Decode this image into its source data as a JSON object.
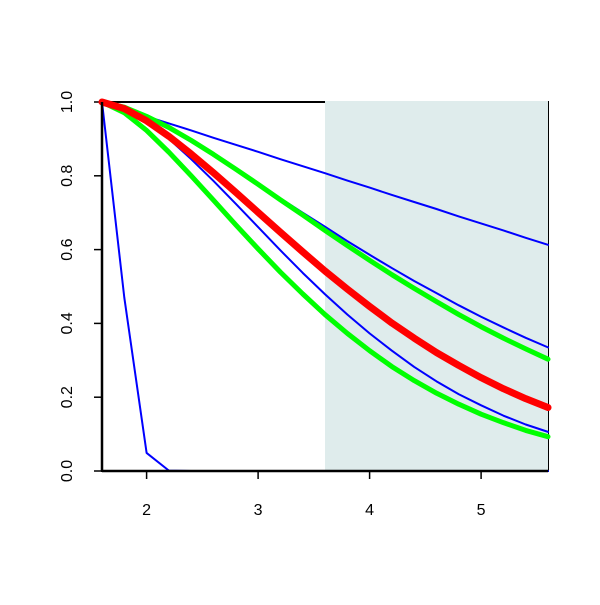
{
  "chart_data": {
    "type": "line",
    "x": [
      1.6,
      1.8,
      2.0,
      2.2,
      2.4,
      2.6,
      2.8,
      3.0,
      3.2,
      3.4,
      3.6,
      3.8,
      4.0,
      4.2,
      4.4,
      4.6,
      4.8,
      5.0,
      5.2,
      5.4,
      5.6
    ],
    "xlim": [
      1.6,
      5.6
    ],
    "xticks": [
      2,
      3,
      4,
      5
    ],
    "ylim": [
      0,
      1
    ],
    "yticks": [
      {
        "value": 0,
        "label": "0.0"
      },
      {
        "value": 0.2,
        "label": "0.2"
      },
      {
        "value": 0.4,
        "label": "0.4"
      },
      {
        "value": 0.6,
        "label": "0.6"
      },
      {
        "value": 0.8,
        "label": "0.8"
      },
      {
        "value": 1,
        "label": "1.0"
      }
    ],
    "highlight_x": [
      3.6,
      5.6
    ],
    "highlight_color": "#dfecec",
    "series": [
      {
        "color": "#0000ff",
        "width": 2,
        "values": [
          1.0,
          0.981,
          0.961,
          0.942,
          0.923,
          0.903,
          0.884,
          0.865,
          0.845,
          0.826,
          0.807,
          0.787,
          0.768,
          0.748,
          0.729,
          0.71,
          0.69,
          0.671,
          0.652,
          0.632,
          0.613
        ]
      },
      {
        "color": "#0000ff",
        "width": 2,
        "values": [
          1.0,
          0.984,
          0.958,
          0.927,
          0.892,
          0.856,
          0.817,
          0.779,
          0.739,
          0.7,
          0.662,
          0.623,
          0.586,
          0.55,
          0.515,
          0.482,
          0.449,
          0.418,
          0.389,
          0.361,
          0.335
        ]
      },
      {
        "color": "#0000ff",
        "width": 2,
        "values": [
          1.0,
          0.982,
          0.946,
          0.9,
          0.845,
          0.786,
          0.724,
          0.661,
          0.598,
          0.537,
          0.479,
          0.424,
          0.373,
          0.326,
          0.282,
          0.243,
          0.208,
          0.178,
          0.15,
          0.126,
          0.106
        ]
      },
      {
        "color": "#0000ff",
        "width": 2,
        "values": [
          1.0,
          0.47,
          0.049,
          0.001,
          0,
          0,
          0,
          0,
          0,
          0,
          0,
          0,
          0,
          0,
          0,
          0,
          0,
          0,
          0,
          0,
          0
        ]
      },
      {
        "color": "#00ff00",
        "width": 5,
        "values": [
          1.0,
          0.986,
          0.961,
          0.931,
          0.896,
          0.858,
          0.818,
          0.777,
          0.735,
          0.694,
          0.652,
          0.611,
          0.571,
          0.532,
          0.495,
          0.459,
          0.424,
          0.391,
          0.36,
          0.331,
          0.303
        ]
      },
      {
        "color": "#00ff00",
        "width": 5,
        "values": [
          1.0,
          0.971,
          0.923,
          0.864,
          0.8,
          0.734,
          0.667,
          0.602,
          0.539,
          0.48,
          0.424,
          0.373,
          0.326,
          0.283,
          0.245,
          0.211,
          0.181,
          0.154,
          0.131,
          0.11,
          0.093
        ]
      },
      {
        "color": "#ff0000",
        "width": 7,
        "values": [
          1.0,
          0.982,
          0.949,
          0.907,
          0.859,
          0.808,
          0.755,
          0.701,
          0.647,
          0.594,
          0.542,
          0.493,
          0.446,
          0.401,
          0.36,
          0.321,
          0.286,
          0.253,
          0.223,
          0.196,
          0.172
        ]
      }
    ]
  }
}
